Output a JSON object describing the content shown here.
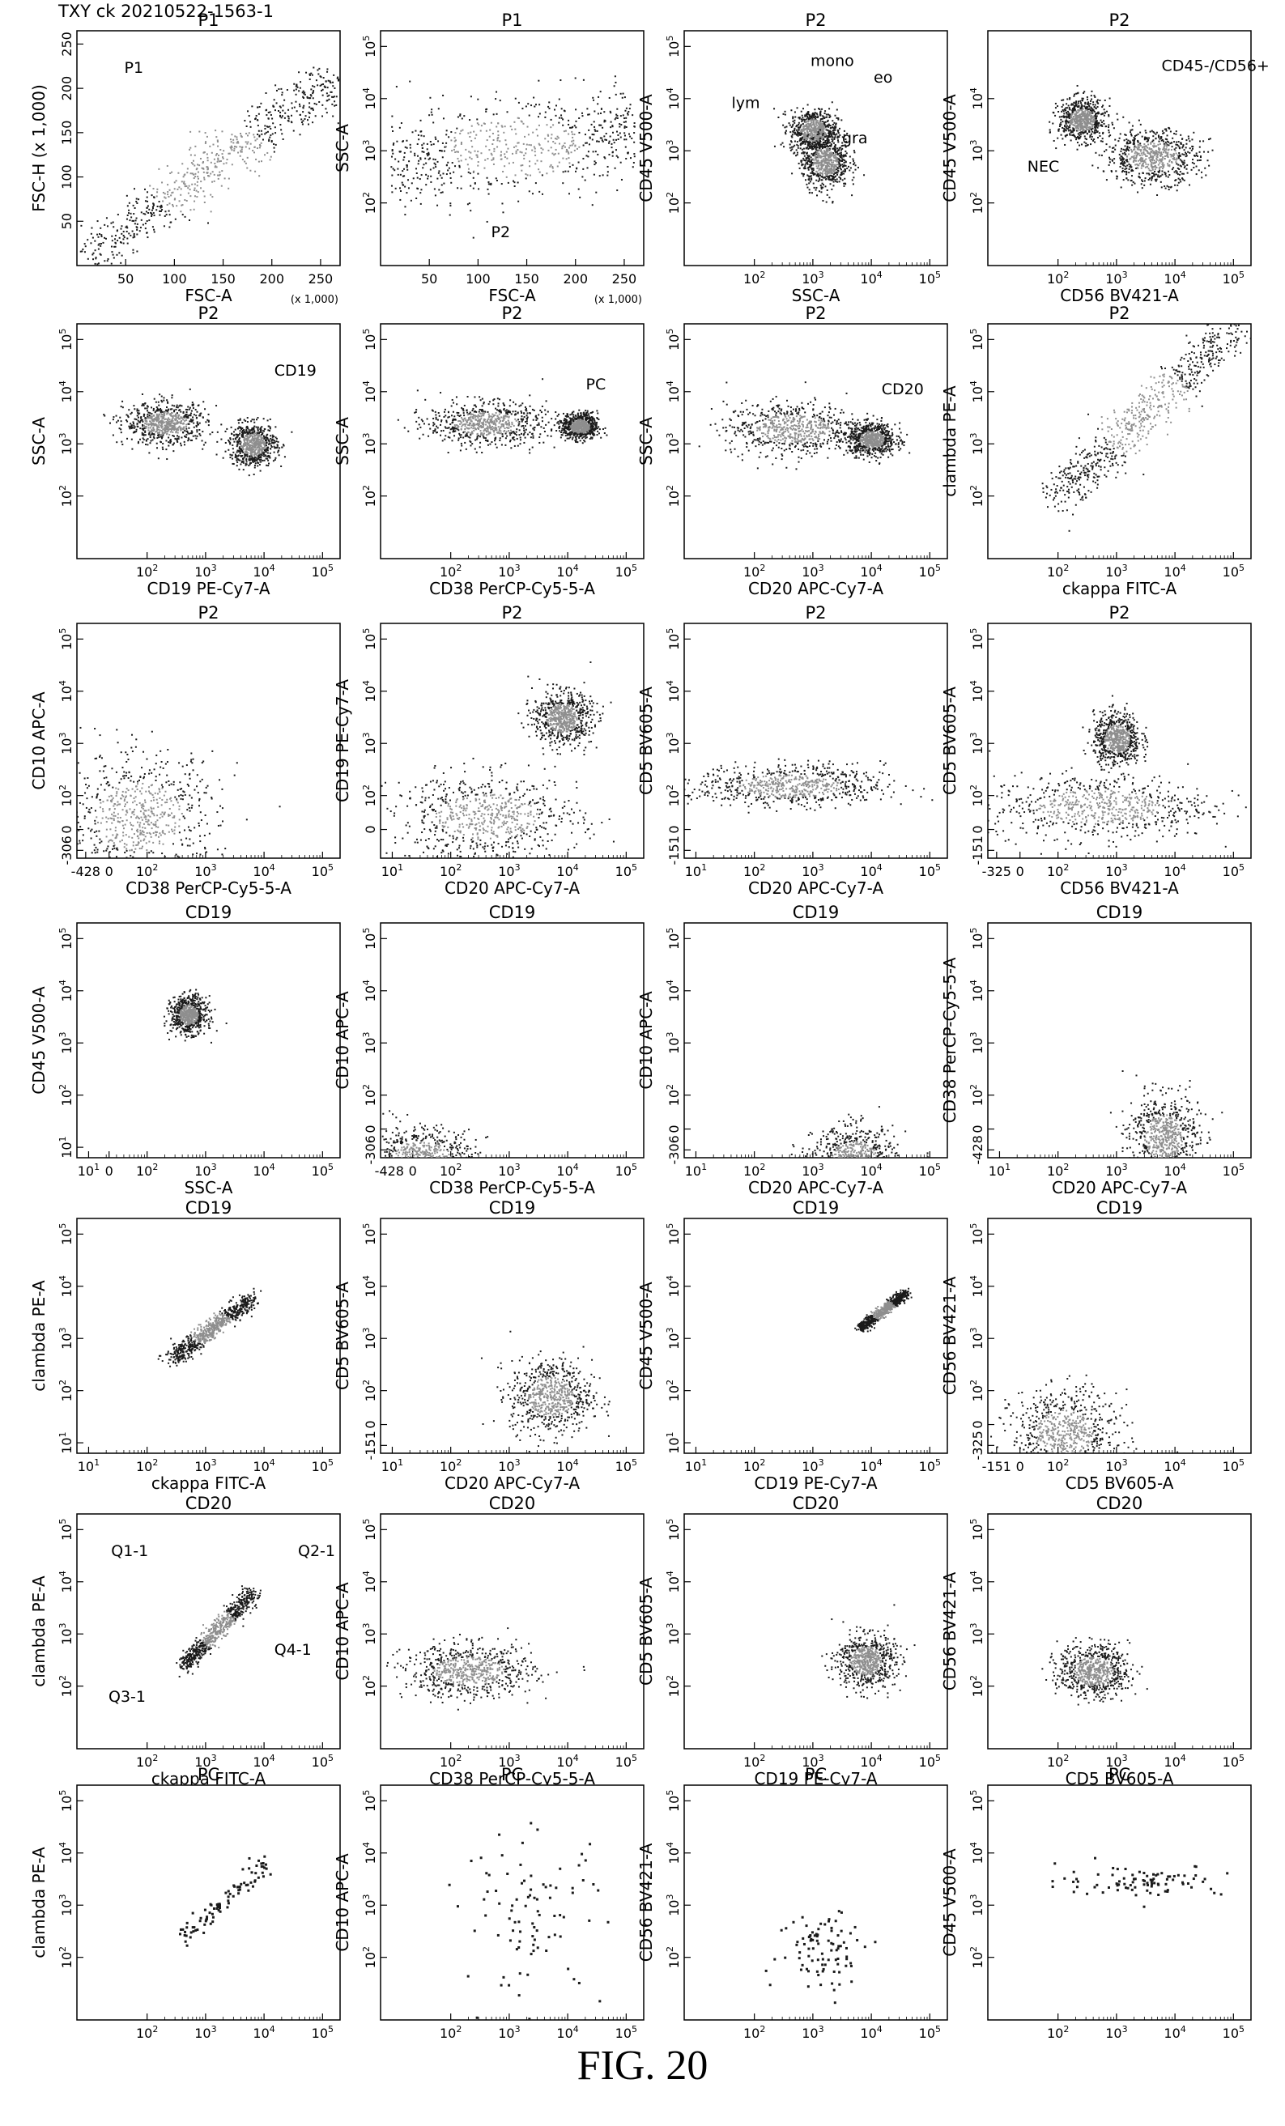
{
  "header": "TXY ck 20210522-1563-1",
  "caption": "FIG. 20",
  "colors": {
    "dense": "#8e8e8e",
    "sparse": "#1a1a1a",
    "frame": "#000000"
  },
  "chart_data": [
    {
      "type": "scatter",
      "title": "P1",
      "xlabel": "FSC-A",
      "ylabel": "FSC-H (x 1,000)",
      "x_ticks": [
        "50",
        "100",
        "150",
        "200",
        "250"
      ],
      "y_ticks": [
        "50",
        "100",
        "150",
        "200",
        "250"
      ],
      "x_note": "(x 1,000)",
      "gates": [
        "P1"
      ],
      "populations": [
        {
          "x": [
            10,
            260
          ],
          "y": [
            10,
            210
          ],
          "shape": "diagonal"
        }
      ]
    },
    {
      "type": "scatter",
      "title": "P1",
      "xlabel": "FSC-A",
      "ylabel": "SSC-A",
      "x_ticks": [
        "50",
        "100",
        "150",
        "200",
        "250"
      ],
      "y_ticks": [
        "10^2",
        "10^3",
        "10^4",
        "10^5"
      ],
      "x_note": "(x 1,000)",
      "gates": [
        "P2"
      ],
      "populations": [
        {
          "x": [
            10,
            260
          ],
          "y": [
            2.0,
            4.2
          ],
          "shape": "band"
        }
      ]
    },
    {
      "type": "scatter",
      "title": "P2",
      "xlabel": "SSC-A",
      "ylabel": "CD45 V500-A",
      "x_ticks": [
        "10^2",
        "10^3",
        "10^4",
        "10^5"
      ],
      "y_ticks": [
        "10^2",
        "10^3",
        "10^4",
        "10^5"
      ],
      "gates": [
        "mono",
        "eo",
        "lym",
        "gra"
      ],
      "populations": [
        {
          "x": [
            2.6,
            3.4
          ],
          "y": [
            3.0,
            3.8
          ]
        },
        {
          "x": [
            2.8,
            3.6
          ],
          "y": [
            2.3,
            3.3
          ]
        }
      ]
    },
    {
      "type": "scatter",
      "title": "P2",
      "xlabel": "CD56  BV421-A",
      "ylabel": "CD45 V500-A",
      "x_ticks": [
        "10^2",
        "10^3",
        "10^4",
        "10^5"
      ],
      "y_ticks": [
        "10^2",
        "10^3",
        "10^4"
      ],
      "gates": [
        "CD45-/CD56+",
        "NEC"
      ],
      "populations": [
        {
          "x": [
            2.0,
            2.8
          ],
          "y": [
            3.2,
            4.0
          ]
        },
        {
          "x": [
            2.8,
            4.4
          ],
          "y": [
            2.4,
            3.4
          ]
        }
      ]
    },
    {
      "type": "scatter",
      "title": "P2",
      "xlabel": "CD19 PE-Cy7-A",
      "ylabel": "SSC-A",
      "x_ticks": [
        "10^2",
        "10^3",
        "10^4",
        "10^5"
      ],
      "y_ticks": [
        "10^2",
        "10^3",
        "10^4",
        "10^5"
      ],
      "gates": [
        "CD19"
      ],
      "populations": [
        {
          "x": [
            1.6,
            3.0
          ],
          "y": [
            3.0,
            3.8
          ]
        },
        {
          "x": [
            3.4,
            4.2
          ],
          "y": [
            2.6,
            3.4
          ]
        }
      ]
    },
    {
      "type": "scatter",
      "title": "P2",
      "xlabel": "CD38 PerCP-Cy5-5-A",
      "ylabel": "SSC-A",
      "x_ticks": [
        "10^2",
        "10^3",
        "10^4",
        "10^5"
      ],
      "y_ticks": [
        "10^2",
        "10^3",
        "10^4",
        "10^5"
      ],
      "gates": [
        "PC"
      ],
      "populations": [
        {
          "x": [
            1.6,
            3.6
          ],
          "y": [
            3.0,
            3.8
          ]
        },
        {
          "x": [
            3.9,
            4.5
          ],
          "y": [
            3.1,
            3.6
          ]
        }
      ]
    },
    {
      "type": "scatter",
      "title": "P2",
      "xlabel": "CD20 APC-Cy7-A",
      "ylabel": "SSC-A",
      "x_ticks": [
        "10^2",
        "10^3",
        "10^4",
        "10^5"
      ],
      "y_ticks": [
        "10^2",
        "10^3",
        "10^4",
        "10^5"
      ],
      "gates": [
        "CD20"
      ],
      "populations": [
        {
          "x": [
            1.5,
            3.8
          ],
          "y": [
            2.8,
            3.8
          ]
        },
        {
          "x": [
            3.6,
            4.4
          ],
          "y": [
            2.8,
            3.4
          ]
        }
      ]
    },
    {
      "type": "scatter",
      "title": "P2",
      "xlabel": "ckappa FITC-A",
      "ylabel": "clambda PE-A",
      "x_ticks": [
        "10^2",
        "10^3",
        "10^4",
        "10^5"
      ],
      "y_ticks": [
        "10^2",
        "10^3",
        "10^4",
        "10^5"
      ],
      "populations": [
        {
          "x": [
            2.0,
            5.0
          ],
          "y": [
            2.0,
            5.2
          ],
          "shape": "diagonal"
        }
      ]
    },
    {
      "type": "scatter",
      "title": "P2",
      "xlabel": "CD38 PerCP-Cy5-5-A",
      "ylabel": "CD10 APC-A",
      "x_ticks": [
        "-428",
        "0",
        "10^2",
        "10^3",
        "10^4",
        "10^5"
      ],
      "y_ticks": [
        "-306",
        "0",
        "10^2",
        "10^3",
        "10^4",
        "10^5"
      ],
      "populations": [
        {
          "x": [
            0.5,
            3.2
          ],
          "y": [
            0.4,
            2.8
          ]
        }
      ]
    },
    {
      "type": "scatter",
      "title": "P2",
      "xlabel": "CD20 APC-Cy7-A",
      "ylabel": "CD19 PE-Cy7-A",
      "x_ticks": [
        "10^1",
        "10^2",
        "10^3",
        "10^4",
        "10^5"
      ],
      "y_ticks": [
        "0",
        "10^2",
        "10^3",
        "10^4",
        "10^5"
      ],
      "populations": [
        {
          "x": [
            1.0,
            4.2
          ],
          "y": [
            0.8,
            2.4
          ]
        },
        {
          "x": [
            3.4,
            4.4
          ],
          "y": [
            3.0,
            4.0
          ]
        }
      ]
    },
    {
      "type": "scatter",
      "title": "P2",
      "xlabel": "CD20 APC-Cy7-A",
      "ylabel": "CD5 BV605-A",
      "x_ticks": [
        "10^1",
        "10^2",
        "10^3",
        "10^4",
        "10^5"
      ],
      "y_ticks": [
        "-151",
        "0",
        "10^2",
        "10^3",
        "10^4",
        "10^5"
      ],
      "populations": [
        {
          "x": [
            1.0,
            4.2
          ],
          "y": [
            1.8,
            2.6
          ]
        }
      ]
    },
    {
      "type": "scatter",
      "title": "P2",
      "xlabel": "CD56  BV421-A",
      "ylabel": "CD5 BV605-A",
      "x_ticks": [
        "-325",
        "0",
        "10^2",
        "10^3",
        "10^4",
        "10^5"
      ],
      "y_ticks": [
        "-151",
        "0",
        "10^2",
        "10^3",
        "10^4",
        "10^5"
      ],
      "populations": [
        {
          "x": [
            0.8,
            4.6
          ],
          "y": [
            1.2,
            2.4
          ]
        },
        {
          "x": [
            2.6,
            3.4
          ],
          "y": [
            2.6,
            3.6
          ]
        }
      ]
    },
    {
      "type": "scatter",
      "title": "CD19",
      "xlabel": "SSC-A",
      "ylabel": "CD45 V500-A",
      "x_ticks": [
        "0",
        "10^1",
        "10^2",
        "10^3",
        "10^4",
        "10^5"
      ],
      "y_ticks": [
        "10^1",
        "10^2",
        "10^3",
        "10^4",
        "10^5"
      ],
      "populations": [
        {
          "x": [
            2.4,
            3.0
          ],
          "y": [
            3.2,
            3.9
          ]
        }
      ]
    },
    {
      "type": "scatter",
      "title": "CD19",
      "xlabel": "CD38 PerCP-Cy5-5-A",
      "ylabel": "CD10 APC-A",
      "x_ticks": [
        "-428",
        "0",
        "10^2",
        "10^3",
        "10^4",
        "10^5"
      ],
      "y_ticks": [
        "-306",
        "0",
        "10^2",
        "10^3",
        "10^4",
        "10^5"
      ],
      "populations": [
        {
          "x": [
            0.6,
            2.4
          ],
          "y": [
            0.2,
            1.4
          ]
        }
      ]
    },
    {
      "type": "scatter",
      "title": "CD19",
      "xlabel": "CD20 APC-Cy7-A",
      "ylabel": "CD10 APC-A",
      "x_ticks": [
        "10^1",
        "10^2",
        "10^3",
        "10^4",
        "10^5"
      ],
      "y_ticks": [
        "-306",
        "0",
        "10^2",
        "10^3",
        "10^4",
        "10^5"
      ],
      "populations": [
        {
          "x": [
            3.0,
            4.4
          ],
          "y": [
            0.2,
            1.4
          ]
        }
      ]
    },
    {
      "type": "scatter",
      "title": "CD19",
      "xlabel": "CD20 APC-Cy7-A",
      "ylabel": "CD38 PerCP-Cy5-5-A",
      "x_ticks": [
        "10^1",
        "10^2",
        "10^3",
        "10^4",
        "10^5"
      ],
      "y_ticks": [
        "-428",
        "0",
        "10^2",
        "10^3",
        "10^4",
        "10^5"
      ],
      "populations": [
        {
          "x": [
            3.2,
            4.4
          ],
          "y": [
            0.4,
            2.0
          ]
        }
      ]
    },
    {
      "type": "scatter",
      "title": "CD19",
      "xlabel": "ckappa FITC-A",
      "ylabel": "clambda PE-A",
      "x_ticks": [
        "10^1",
        "10^2",
        "10^3",
        "10^4",
        "10^5"
      ],
      "y_ticks": [
        "10^1",
        "10^2",
        "10^3",
        "10^4",
        "10^5"
      ],
      "populations": [
        {
          "x": [
            2.4,
            3.8
          ],
          "y": [
            2.6,
            3.8
          ],
          "shape": "diagonal"
        }
      ]
    },
    {
      "type": "scatter",
      "title": "CD19",
      "xlabel": "CD20 APC-Cy7-A",
      "ylabel": "CD5 BV605-A",
      "x_ticks": [
        "10^1",
        "10^2",
        "10^3",
        "10^4",
        "10^5"
      ],
      "y_ticks": [
        "-151",
        "0",
        "10^2",
        "10^3",
        "10^4",
        "10^5"
      ],
      "populations": [
        {
          "x": [
            3.0,
            4.4
          ],
          "y": [
            1.2,
            2.6
          ]
        }
      ]
    },
    {
      "type": "scatter",
      "title": "CD19",
      "xlabel": "CD19 PE-Cy7-A",
      "ylabel": "CD45 V500-A",
      "x_ticks": [
        "10^1",
        "10^2",
        "10^3",
        "10^4",
        "10^5"
      ],
      "y_ticks": [
        "10^1",
        "10^2",
        "10^3",
        "10^4",
        "10^5"
      ],
      "populations": [
        {
          "x": [
            3.8,
            4.6
          ],
          "y": [
            3.2,
            3.9
          ],
          "shape": "diagonal"
        }
      ]
    },
    {
      "type": "scatter",
      "title": "CD19",
      "xlabel": "CD5 BV605-A",
      "ylabel": "CD56  BV421-A",
      "x_ticks": [
        "-151",
        "0",
        "10^2",
        "10^3",
        "10^4",
        "10^5"
      ],
      "y_ticks": [
        "-325",
        "0",
        "10^2",
        "10^3",
        "10^4",
        "10^5"
      ],
      "populations": [
        {
          "x": [
            1.2,
            3.0
          ],
          "y": [
            0.4,
            2.0
          ]
        }
      ]
    },
    {
      "type": "scatter",
      "title": "CD20",
      "xlabel": "ckappa FITC-A",
      "ylabel": "clambda PE-A",
      "x_ticks": [
        "10^2",
        "10^3",
        "10^4",
        "10^5"
      ],
      "y_ticks": [
        "10^2",
        "10^3",
        "10^4",
        "10^5"
      ],
      "gates": [
        "Q1-1",
        "Q2-1",
        "Q3-1",
        "Q4-1"
      ],
      "populations": [
        {
          "x": [
            2.6,
            3.8
          ],
          "y": [
            2.4,
            3.8
          ],
          "shape": "diagonal"
        }
      ]
    },
    {
      "type": "scatter",
      "title": "CD20",
      "xlabel": "CD38 PerCP-Cy5-5-A",
      "ylabel": "CD10 APC-A",
      "x_ticks": [
        "10^2",
        "10^3",
        "10^4",
        "10^5"
      ],
      "y_ticks": [
        "10^2",
        "10^3",
        "10^4",
        "10^5"
      ],
      "populations": [
        {
          "x": [
            1.2,
            3.4
          ],
          "y": [
            1.8,
            2.8
          ]
        }
      ]
    },
    {
      "type": "scatter",
      "title": "CD20",
      "xlabel": "CD19 PE-Cy7-A",
      "ylabel": "CD5 BV605-A",
      "x_ticks": [
        "10^2",
        "10^3",
        "10^4",
        "10^5"
      ],
      "y_ticks": [
        "10^2",
        "10^3",
        "10^4",
        "10^5"
      ],
      "populations": [
        {
          "x": [
            3.4,
            4.4
          ],
          "y": [
            2.0,
            3.0
          ]
        }
      ]
    },
    {
      "type": "scatter",
      "title": "CD20",
      "xlabel": "CD5 BV605-A",
      "ylabel": "CD56  BV421-A",
      "x_ticks": [
        "10^2",
        "10^3",
        "10^4",
        "10^5"
      ],
      "y_ticks": [
        "10^2",
        "10^3",
        "10^4",
        "10^5"
      ],
      "populations": [
        {
          "x": [
            2.0,
            3.2
          ],
          "y": [
            1.8,
            2.8
          ]
        }
      ]
    },
    {
      "type": "scatter",
      "title": "PC",
      "xlabel": "ckappa FITC-A",
      "ylabel": "clambda PE-A",
      "x_ticks": [
        "10^2",
        "10^3",
        "10^4",
        "10^5"
      ],
      "y_ticks": [
        "10^2",
        "10^3",
        "10^4",
        "10^5"
      ],
      "populations": [
        {
          "x": [
            2.6,
            4.0
          ],
          "y": [
            2.4,
            3.8
          ],
          "shape": "diagonal",
          "sparse": true
        }
      ]
    },
    {
      "type": "scatter",
      "title": "PC",
      "xlabel": "CD20 APC-Cy7-A",
      "ylabel": "CD10 APC-A",
      "x_ticks": [
        "10^2",
        "10^3",
        "10^4",
        "10^5"
      ],
      "y_ticks": [
        "10^2",
        "10^3",
        "10^4",
        "10^5"
      ],
      "populations": [
        {
          "x": [
            2.2,
            4.6
          ],
          "y": [
            1.2,
            4.4
          ],
          "sparse": true
        }
      ]
    },
    {
      "type": "scatter",
      "title": "PC",
      "xlabel": "CD19 PE-Cy7-A",
      "ylabel": "CD56  BV421-A",
      "x_ticks": [
        "10^2",
        "10^3",
        "10^4",
        "10^5"
      ],
      "y_ticks": [
        "10^2",
        "10^3",
        "10^4",
        "10^5"
      ],
      "populations": [
        {
          "x": [
            2.4,
            4.0
          ],
          "y": [
            1.4,
            3.0
          ],
          "sparse": true
        }
      ]
    },
    {
      "type": "scatter",
      "title": "PC",
      "xlabel": "CD56  BV421-A",
      "ylabel": "CD45 V500-A",
      "x_ticks": [
        "10^2",
        "10^3",
        "10^4",
        "10^5"
      ],
      "y_ticks": [
        "10^2",
        "10^3",
        "10^4",
        "10^5"
      ],
      "populations": [
        {
          "x": [
            2.0,
            4.8
          ],
          "y": [
            3.2,
            3.8
          ],
          "sparse": true
        }
      ]
    }
  ]
}
